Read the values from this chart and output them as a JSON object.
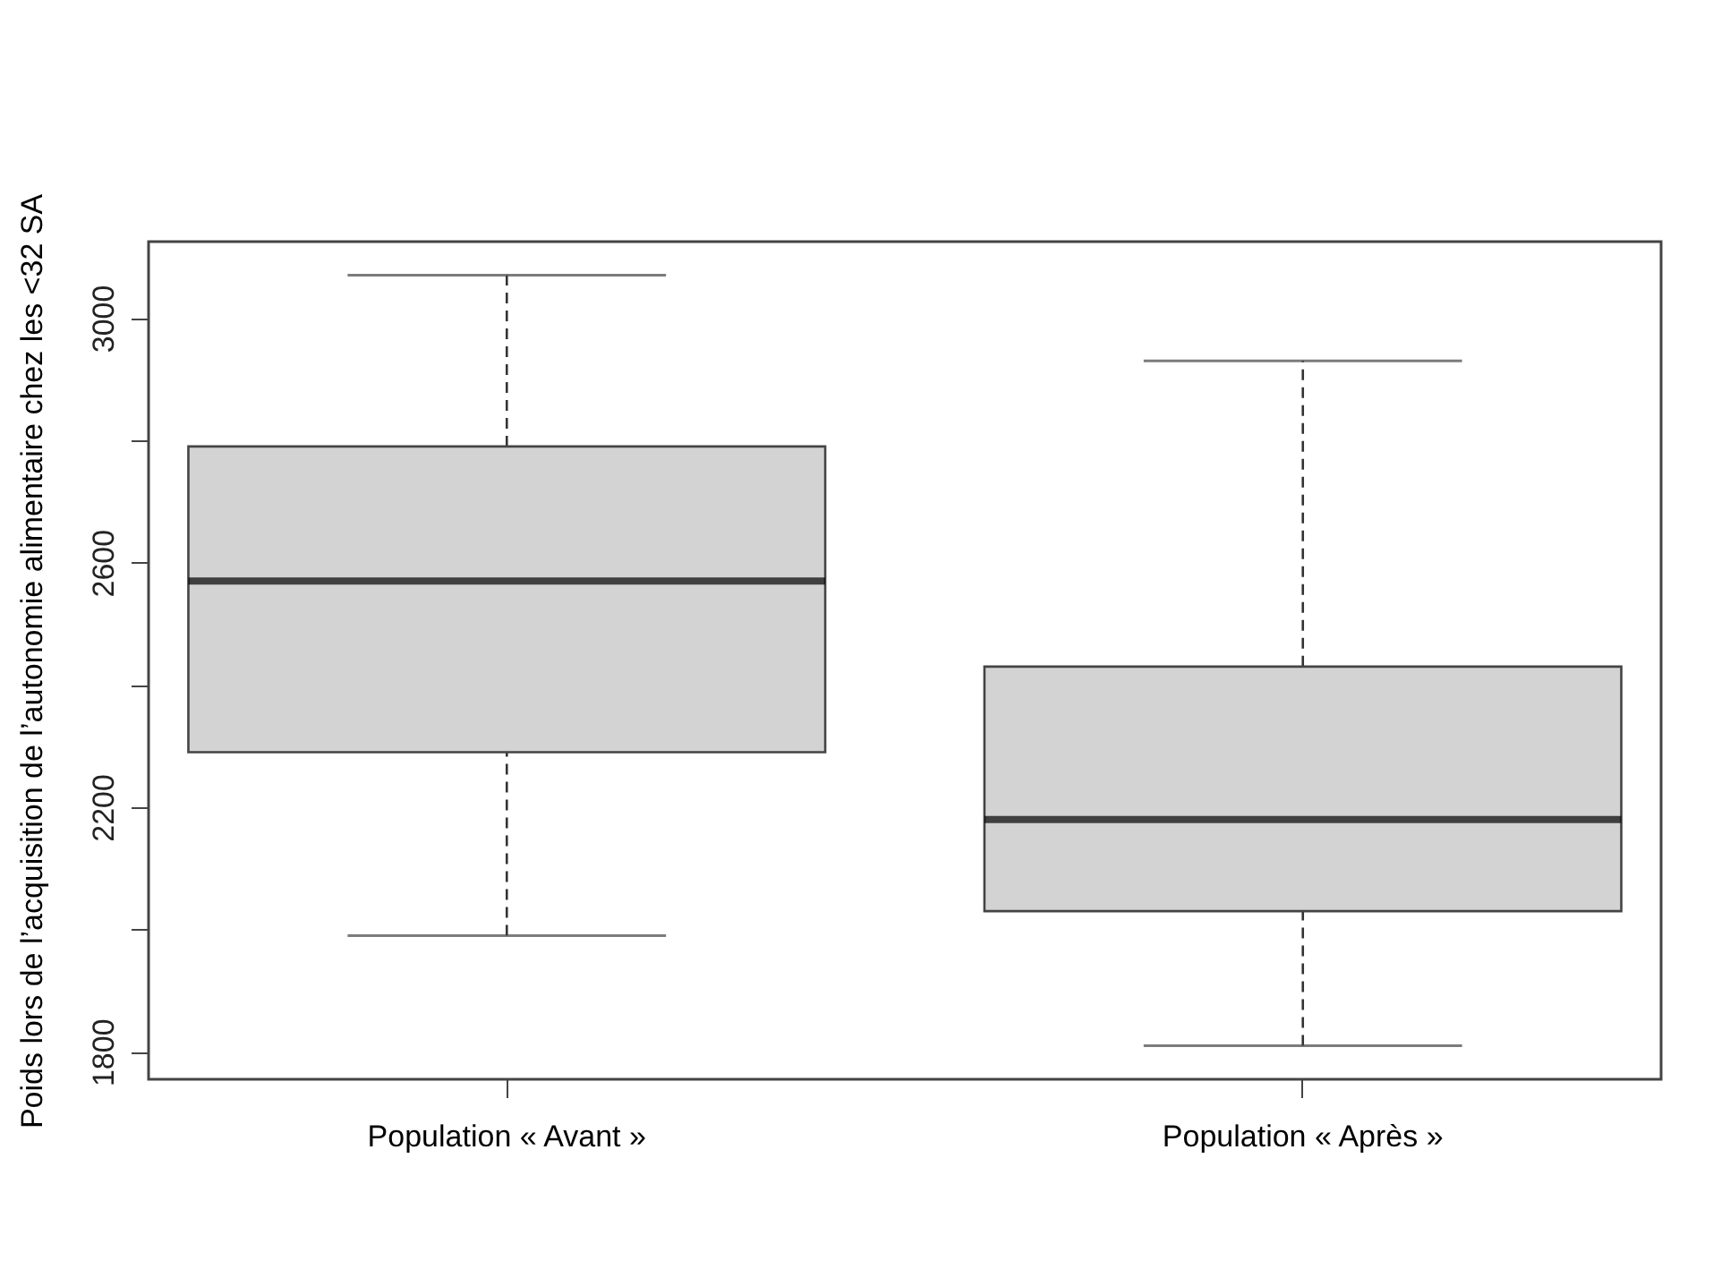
{
  "chart_data": {
    "type": "box",
    "ylabel": "Poids  lors de l’acquisition de l’autonomie alimentaire chez les <32 SA",
    "categories": [
      "Population « Avant »",
      "Population « Après »"
    ],
    "boxes": [
      {
        "low": 1990,
        "q1": 2290,
        "median": 2570,
        "q3": 2790,
        "high": 3070
      },
      {
        "low": 1810,
        "q1": 2030,
        "median": 2180,
        "q3": 2430,
        "high": 2930
      }
    ],
    "color": "#d3d3d3",
    "ylim": [
      1755,
      3125
    ],
    "yticks": [
      1800,
      {
        "value": 2000,
        "label": null
      },
      2200,
      {
        "value": 2400,
        "label": null
      },
      2600,
      {
        "value": 2800,
        "label": null
      },
      3000
    ],
    "grid": false,
    "line_style": "dashed"
  }
}
